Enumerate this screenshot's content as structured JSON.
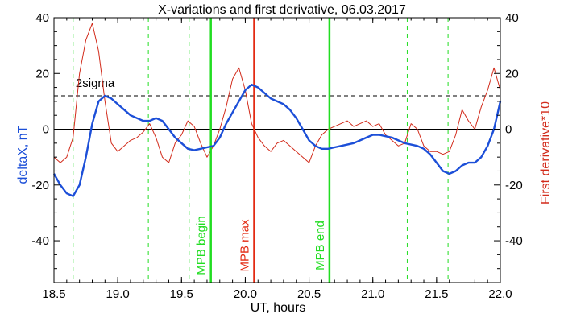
{
  "chart_data": {
    "type": "line",
    "title": "X-variations and first derivative, 06.03.2017",
    "xlabel": "UT, hours",
    "ylabel_left": "deltaX, nT",
    "ylabel_right": "First derivative*10",
    "xlim": [
      18.5,
      22.0
    ],
    "ylim": [
      -55,
      40
    ],
    "x_ticks": [
      "18.5",
      "19.0",
      "19.5",
      "20.0",
      "20.5",
      "21.0",
      "21.5",
      "22.0"
    ],
    "y_ticks": [
      "-40",
      "-20",
      "0",
      "20",
      "40"
    ],
    "y_ticks_right": [
      "-40",
      "-20",
      "0",
      "20",
      "40"
    ],
    "colors": {
      "deltaX": "#1c4fd8",
      "derivative": "#d22b1b",
      "mpb_boundary": "#22dd22",
      "mpb_max": "#e32a12",
      "axes": "#000000"
    },
    "threshold": {
      "label": "2sigma",
      "value": 12
    },
    "zero_line": 0,
    "vertical_markers": [
      {
        "x": 19.73,
        "label": "MPB begin",
        "color": "#22dd22"
      },
      {
        "x": 20.07,
        "label": "MPB max",
        "color": "#e32a12"
      },
      {
        "x": 20.66,
        "label": "MPB end",
        "color": "#22dd22"
      }
    ],
    "dashed_verticals": [
      18.65,
      19.24,
      19.56,
      21.27,
      21.59
    ],
    "series": [
      {
        "name": "deltaX, nT",
        "axis": "left",
        "x": [
          18.5,
          18.55,
          18.6,
          18.65,
          18.7,
          18.75,
          18.8,
          18.85,
          18.9,
          18.95,
          19.0,
          19.05,
          19.1,
          19.15,
          19.2,
          19.25,
          19.3,
          19.35,
          19.4,
          19.45,
          19.5,
          19.55,
          19.6,
          19.65,
          19.7,
          19.75,
          19.8,
          19.85,
          19.9,
          19.95,
          20.0,
          20.05,
          20.1,
          20.15,
          20.2,
          20.25,
          20.3,
          20.35,
          20.4,
          20.45,
          20.5,
          20.55,
          20.6,
          20.65,
          20.7,
          20.75,
          20.8,
          20.85,
          20.9,
          20.95,
          21.0,
          21.05,
          21.1,
          21.15,
          21.2,
          21.25,
          21.3,
          21.35,
          21.4,
          21.45,
          21.5,
          21.55,
          21.6,
          21.65,
          21.7,
          21.75,
          21.8,
          21.85,
          21.9,
          21.95,
          22.0
        ],
        "y": [
          -16,
          -20,
          -23,
          -24,
          -20,
          -10,
          2,
          10,
          12,
          11,
          9,
          7,
          5,
          4,
          3,
          3,
          4,
          3,
          0,
          -3,
          -5,
          -7,
          -7.5,
          -7,
          -6.5,
          -6,
          -3,
          2,
          6,
          10,
          14,
          16,
          15,
          13,
          11,
          10,
          9,
          7,
          4,
          0,
          -4,
          -6,
          -7,
          -7,
          -6.5,
          -6,
          -5.5,
          -5,
          -4,
          -3,
          -2,
          -2,
          -2.5,
          -3,
          -4,
          -5,
          -5.5,
          -6,
          -7,
          -9,
          -12,
          -15,
          -16,
          -15,
          -13,
          -12,
          -12,
          -10,
          -6,
          0,
          10
        ]
      },
      {
        "name": "First derivative*10",
        "axis": "right",
        "x": [
          18.5,
          18.55,
          18.6,
          18.65,
          18.7,
          18.75,
          18.8,
          18.85,
          18.9,
          18.95,
          19.0,
          19.05,
          19.1,
          19.15,
          19.2,
          19.25,
          19.3,
          19.35,
          19.4,
          19.45,
          19.5,
          19.55,
          19.6,
          19.65,
          19.7,
          19.75,
          19.8,
          19.85,
          19.9,
          19.95,
          20.0,
          20.05,
          20.1,
          20.15,
          20.2,
          20.25,
          20.3,
          20.35,
          20.4,
          20.45,
          20.5,
          20.55,
          20.6,
          20.65,
          20.7,
          20.75,
          20.8,
          20.85,
          20.9,
          20.95,
          21.0,
          21.05,
          21.1,
          21.15,
          21.2,
          21.25,
          21.3,
          21.35,
          21.4,
          21.45,
          21.5,
          21.55,
          21.6,
          21.65,
          21.7,
          21.75,
          21.8,
          21.85,
          21.9,
          21.95,
          22.0
        ],
        "y": [
          -10,
          -12,
          -10,
          -3,
          20,
          32,
          38,
          28,
          10,
          -5,
          -8,
          -6,
          -4,
          -3,
          -1,
          2,
          -3,
          -10,
          -12,
          -5,
          -2,
          3,
          1,
          -5,
          -10,
          -6,
          0,
          8,
          18,
          22,
          14,
          2,
          -3,
          -6,
          -8,
          -5,
          -4,
          -6,
          -8,
          -10,
          -12,
          -6,
          -2,
          0,
          1,
          2,
          3,
          1,
          2,
          3,
          1,
          2,
          -2,
          -4,
          -6,
          -5,
          2,
          0,
          -6,
          -8,
          -8,
          -9,
          -8,
          -2,
          7,
          3,
          0,
          8,
          14,
          22,
          14
        ]
      }
    ]
  }
}
